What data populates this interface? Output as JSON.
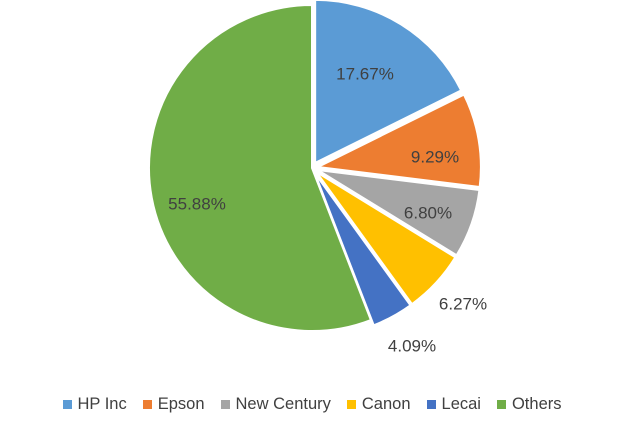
{
  "chart_data": {
    "type": "pie",
    "title": "",
    "start_angle_deg": 0,
    "direction": "clockwise",
    "legend_position": "bottom",
    "slices": [
      {
        "name": "HP Inc",
        "value": 17.67,
        "label": "17.67%",
        "color": "#5B9BD5"
      },
      {
        "name": "Epson",
        "value": 9.29,
        "label": "9.29%",
        "color": "#ED7D31"
      },
      {
        "name": "New Century",
        "value": 6.8,
        "label": "6.80%",
        "color": "#A5A5A5"
      },
      {
        "name": "Canon",
        "value": 6.27,
        "label": "6.27%",
        "color": "#FFC000"
      },
      {
        "name": "Lecai",
        "value": 4.09,
        "label": "4.09%",
        "color": "#4472C4"
      },
      {
        "name": "Others",
        "value": 55.88,
        "label": "55.88%",
        "color": "#70AD47"
      }
    ]
  }
}
